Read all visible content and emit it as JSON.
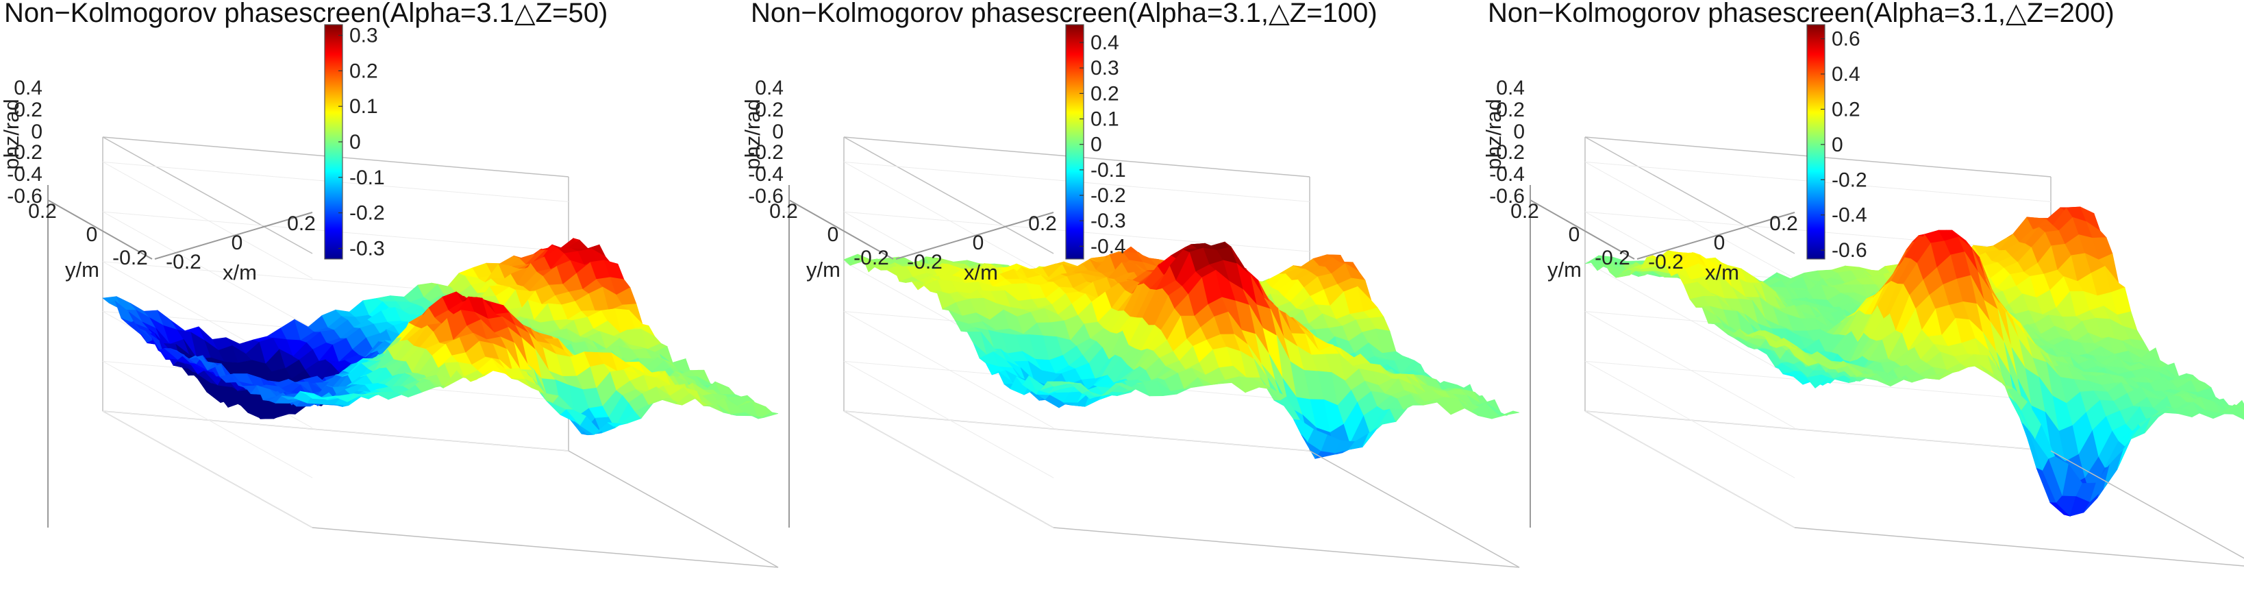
{
  "chart_data": [
    {
      "type": "surface3d",
      "title": "Non−Kolmogorov phasescreen(Alpha=3.1△Z=50)",
      "xlabel": "x/m",
      "ylabel": "y/m",
      "zlabel": "phz/rad",
      "z_ticks": [
        "0.4",
        "0.2",
        "0",
        "-0.2",
        "-0.4",
        "-0.6"
      ],
      "y_ticks": [
        "0.2",
        "0",
        "-0.2"
      ],
      "x_ticks": [
        "-0.2",
        "0",
        "0.2"
      ],
      "colorbar": {
        "ticks": [
          "0.3",
          "0.2",
          "0.1",
          "0",
          "-0.1",
          "-0.2",
          "-0.3"
        ],
        "min": -0.33,
        "max": 0.33
      },
      "zlim": [
        -0.6,
        0.5
      ],
      "peak": 0.33,
      "trough": -0.33
    },
    {
      "type": "surface3d",
      "title": "Non−Kolmogorov phasescreen(Alpha=3.1,△Z=100)",
      "xlabel": "x/m",
      "ylabel": "y/m",
      "zlabel": "phz/rad",
      "z_ticks": [
        "0.4",
        "0.2",
        "0",
        "-0.2",
        "-0.4",
        "-0.6"
      ],
      "y_ticks": [
        "0.2",
        "0",
        "-0.2"
      ],
      "x_ticks": [
        "-0.2",
        "0",
        "0.2"
      ],
      "colorbar": {
        "ticks": [
          "0.4",
          "0.3",
          "0.2",
          "0.1",
          "0",
          "-0.1",
          "-0.2",
          "-0.3",
          "-0.4"
        ],
        "min": -0.45,
        "max": 0.47
      },
      "zlim": [
        -0.6,
        0.5
      ],
      "peak": 0.47,
      "trough": -0.45
    },
    {
      "type": "surface3d",
      "title": "Non−Kolmogorov phasescreen(Alpha=3.1,△Z=200)",
      "xlabel": "x/m",
      "ylabel": "y/m",
      "zlabel": "phz/rad",
      "z_ticks": [
        "0.4",
        "0.2",
        "0",
        "-0.2",
        "-0.4",
        "-0.6"
      ],
      "y_ticks": [
        "0.2",
        "0",
        "-0.2"
      ],
      "x_ticks": [
        "-0.2",
        "0",
        "0.2"
      ],
      "colorbar": {
        "ticks": [
          "0.6",
          "0.4",
          "0.2",
          "0",
          "-0.2",
          "-0.4",
          "-0.6"
        ],
        "min": -0.65,
        "max": 0.68
      },
      "zlim": [
        -0.6,
        0.5
      ],
      "peak": 0.68,
      "trough": -0.65
    }
  ],
  "colormap": "jet"
}
